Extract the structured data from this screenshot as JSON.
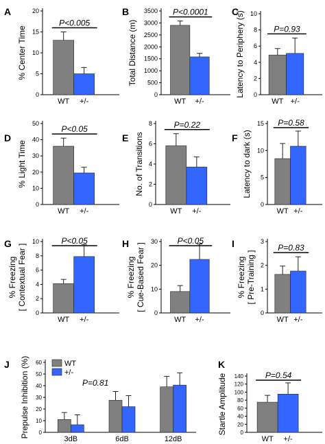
{
  "colors": {
    "wt": "#808080",
    "het": "#3366ff",
    "edge": "#222222"
  },
  "chart_data": [
    {
      "panel": "A",
      "type": "bar",
      "categories": [
        "WT",
        "+/-"
      ],
      "values": [
        13,
        5
      ],
      "errors": [
        2,
        1.5
      ],
      "ylabel": "% Center Time",
      "ylim": [
        0,
        20
      ],
      "yticks": [
        0,
        5,
        10,
        15,
        20
      ],
      "pvalue": "P<0.005"
    },
    {
      "panel": "B",
      "type": "bar",
      "categories": [
        "WT",
        "+/-"
      ],
      "values": [
        2900,
        1580
      ],
      "errors": [
        180,
        150
      ],
      "ylabel": "Total Distance (m)",
      "ylim": [
        0,
        3500
      ],
      "yticks": [
        0,
        500,
        1000,
        1500,
        2000,
        2500,
        3000,
        3500
      ],
      "pvalue": "P<0.0001"
    },
    {
      "panel": "C",
      "type": "bar",
      "categories": [
        "WT",
        "+/-"
      ],
      "values": [
        4.9,
        5.1
      ],
      "errors": [
        0.8,
        1.9
      ],
      "ylabel": "Latency to Periphery (s)",
      "ylim": [
        0,
        10
      ],
      "yticks": [
        0,
        2,
        4,
        6,
        8,
        10
      ],
      "pvalue": "P=0.93"
    },
    {
      "panel": "D",
      "type": "bar",
      "categories": [
        "WT",
        "+/-"
      ],
      "values": [
        36,
        19.5
      ],
      "errors": [
        5,
        3.5
      ],
      "ylabel": "% Light Time",
      "ylim": [
        0,
        50
      ],
      "yticks": [
        0,
        10,
        20,
        30,
        40,
        50
      ],
      "pvalue": "P<0.05"
    },
    {
      "panel": "E",
      "type": "bar",
      "categories": [
        "WT",
        "+/-"
      ],
      "values": [
        5.8,
        3.7
      ],
      "errors": [
        1.2,
        1.0
      ],
      "ylabel": "No. of Transitions",
      "ylim": [
        0,
        8
      ],
      "yticks": [
        0,
        2,
        4,
        6,
        8
      ],
      "pvalue": "P=0.22"
    },
    {
      "panel": "F",
      "type": "bar",
      "categories": [
        "WT",
        "+/-"
      ],
      "values": [
        8.5,
        10.8
      ],
      "errors": [
        2.8,
        2.8
      ],
      "ylabel": "Latency to dark (s)",
      "ylim": [
        0,
        15
      ],
      "yticks": [
        0,
        5,
        10,
        15
      ],
      "pvalue": "P=0.58"
    },
    {
      "panel": "G",
      "type": "bar",
      "categories": [
        "WT",
        "+/-"
      ],
      "values": [
        4.1,
        7.9
      ],
      "errors": [
        0.6,
        1.7
      ],
      "ylabel": "% Freezing\n[ Contextual Fear ]",
      "ylim": [
        0,
        10
      ],
      "yticks": [
        0,
        2,
        4,
        6,
        8,
        10
      ],
      "pvalue": "P<0.05"
    },
    {
      "panel": "H",
      "type": "bar",
      "categories": [
        "WT",
        "+/-"
      ],
      "values": [
        9,
        22.5
      ],
      "errors": [
        2.5,
        6.5
      ],
      "ylabel": "% Freezing\n[ Cue-Based Fear ]",
      "ylim": [
        0,
        30
      ],
      "yticks": [
        0,
        10,
        20,
        30
      ],
      "pvalue": "P<0.05"
    },
    {
      "panel": "I",
      "type": "bar",
      "categories": [
        "WT",
        "+/-"
      ],
      "values": [
        1.62,
        1.76
      ],
      "errors": [
        0.35,
        0.6
      ],
      "ylabel": "% Freezing\n[ Pre-Training ]",
      "ylim": [
        0,
        3
      ],
      "yticks": [
        0,
        1,
        2,
        3
      ],
      "pvalue": "P=0.83"
    },
    {
      "panel": "J",
      "type": "bar",
      "categories": [
        "3dB",
        "6dB",
        "12dB"
      ],
      "series": [
        {
          "name": "WT",
          "values": [
            11,
            27.5,
            39
          ],
          "errors": [
            6,
            7.5,
            9
          ]
        },
        {
          "name": "+/-",
          "values": [
            6.5,
            22,
            40.5
          ],
          "errors": [
            8.5,
            9.5,
            10.5
          ]
        }
      ],
      "ylabel": "Prepulse Inhibition (%)",
      "ylim": [
        0,
        60
      ],
      "yticks": [
        0,
        10,
        20,
        30,
        40,
        50,
        60
      ],
      "pvalue": "P=0.81",
      "legend": "top-left"
    },
    {
      "panel": "K",
      "type": "bar",
      "categories": [
        "WT",
        "+/-"
      ],
      "values": [
        75,
        95
      ],
      "errors": [
        17,
        28
      ],
      "ylabel": "Startle Amplitude",
      "ylim": [
        0,
        140
      ],
      "yticks": [
        0,
        20,
        40,
        60,
        80,
        100,
        120,
        140
      ],
      "pvalue": "P=0.54"
    }
  ]
}
